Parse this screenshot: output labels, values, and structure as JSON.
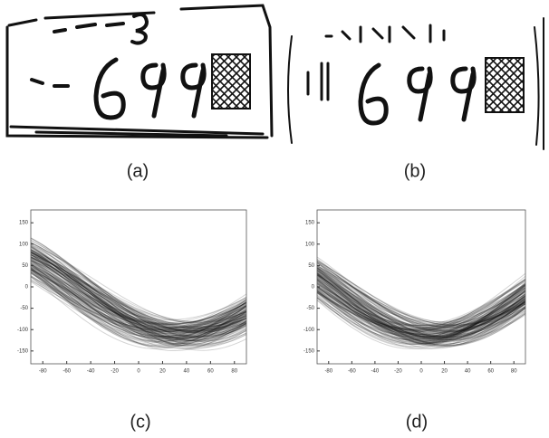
{
  "figure": {
    "panels": [
      {
        "caption": "(a)"
      },
      {
        "caption": "(b)"
      },
      {
        "caption": "(c)",
        "xlim": [
          -90,
          90
        ],
        "ylim": [
          -180,
          180
        ],
        "xticks": [
          -80,
          -60,
          -40,
          -20,
          0,
          20,
          40,
          60,
          80
        ],
        "yticks": [
          150,
          100,
          50,
          0,
          -50,
          -100,
          -150
        ]
      },
      {
        "caption": "(d)",
        "xlim": [
          -90,
          90
        ],
        "ylim": [
          -180,
          180
        ],
        "xticks": [
          -80,
          -60,
          -40,
          -20,
          0,
          20,
          40,
          60,
          80
        ],
        "yticks": [
          150,
          100,
          50,
          0,
          -50,
          -100,
          -150
        ]
      }
    ]
  }
}
